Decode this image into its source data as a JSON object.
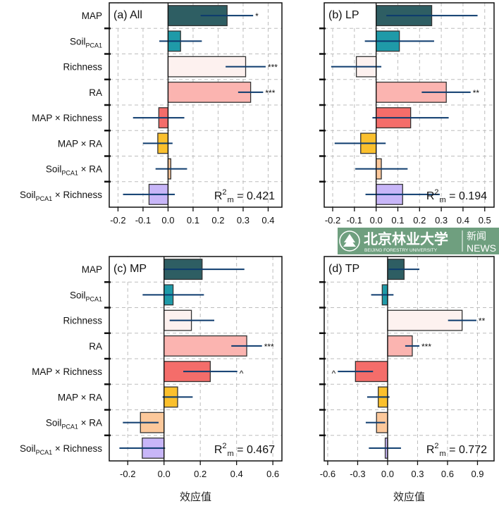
{
  "chart_data": [
    {
      "type": "bar",
      "orientation": "horizontal",
      "title": "(a) All",
      "categories": [
        {
          "main": "MAP",
          "sub": "",
          "suffix": ""
        },
        {
          "main": "Soil",
          "sub": "PCA1",
          "suffix": ""
        },
        {
          "main": "Richness",
          "sub": "",
          "suffix": ""
        },
        {
          "main": "RA",
          "sub": "",
          "suffix": ""
        },
        {
          "main": "MAP × Richness",
          "sub": "",
          "suffix": ""
        },
        {
          "main": "MAP × RA",
          "sub": "",
          "suffix": ""
        },
        {
          "main": "Soil",
          "sub": "PCA1",
          "suffix": " × RA"
        },
        {
          "main": "Soil",
          "sub": "PCA1",
          "suffix": " × Richness"
        }
      ],
      "values": [
        0.236,
        0.05,
        0.31,
        0.33,
        -0.037,
        -0.041,
        0.011,
        -0.076
      ],
      "ci_low": [
        0.13,
        -0.035,
        0.23,
        0.28,
        -0.14,
        -0.1,
        -0.05,
        -0.18
      ],
      "ci_high": [
        0.34,
        0.135,
        0.39,
        0.38,
        0.065,
        0.018,
        0.076,
        0.027
      ],
      "significance": [
        "*",
        "",
        "***",
        "***",
        "",
        "",
        "",
        ""
      ],
      "xlim": [
        -0.235,
        0.455
      ],
      "xticks": [
        "-0.2",
        "-0.1",
        "0.0",
        "0.1",
        "0.2",
        "0.3",
        "0.4"
      ],
      "xtick_values": [
        -0.2,
        -0.1,
        0,
        0.1,
        0.2,
        0.3,
        0.4
      ],
      "r2": {
        "label": "R",
        "sup": "2",
        "sub": "m",
        "value": " = 0.421"
      },
      "xlabel": "",
      "grid": true
    },
    {
      "type": "bar",
      "orientation": "horizontal",
      "title": "(b) LP",
      "values": [
        0.256,
        0.107,
        -0.091,
        0.323,
        0.159,
        -0.071,
        0.024,
        0.122
      ],
      "ci_low": [
        0.047,
        -0.052,
        -0.207,
        0.21,
        -0.017,
        -0.191,
        -0.096,
        -0.049
      ],
      "ci_high": [
        0.467,
        0.267,
        0.024,
        0.435,
        0.334,
        0.044,
        0.145,
        0.293
      ],
      "significance": [
        "",
        "",
        "",
        "**",
        "",
        "",
        "",
        ""
      ],
      "xlim": [
        -0.239,
        0.543
      ],
      "xticks": [
        "-0.2",
        "-0.1",
        "0.0",
        "0.1",
        "0.2",
        "0.3",
        "0.4",
        "0.5"
      ],
      "xtick_values": [
        -0.2,
        -0.1,
        0,
        0.1,
        0.2,
        0.3,
        0.4,
        0.5
      ],
      "r2": {
        "label": "R",
        "sup": "2",
        "sub": "m",
        "value": " = 0.194"
      },
      "xlabel": "",
      "grid": true
    },
    {
      "type": "bar",
      "orientation": "horizontal",
      "title": "(c) MP",
      "values": [
        0.21,
        0.05,
        0.151,
        0.456,
        0.255,
        0.075,
        -0.13,
        -0.12
      ],
      "ci_low": [
        -0.017,
        -0.118,
        0.031,
        0.371,
        0.106,
        -0.008,
        -0.227,
        -0.246
      ],
      "ci_high": [
        0.443,
        0.22,
        0.277,
        0.54,
        0.404,
        0.158,
        -0.03,
        0.006
      ],
      "significance": [
        "",
        "",
        "",
        "***",
        "^",
        "",
        "",
        ""
      ],
      "xlim": [
        -0.302,
        0.65
      ],
      "xticks": [
        "-0.2",
        "0.0",
        "0.2",
        "0.4",
        "0.6"
      ],
      "xtick_values": [
        -0.2,
        0,
        0.2,
        0.4,
        0.6
      ],
      "r2": {
        "label": "R",
        "sup": "2",
        "sub": "m",
        "value": " = 0.467"
      },
      "xlabel": "效应值",
      "grid": true
    },
    {
      "type": "bar",
      "orientation": "horizontal",
      "title": "(d) TP",
      "values": [
        0.165,
        -0.054,
        0.746,
        0.247,
        -0.322,
        -0.094,
        -0.111,
        -0.024
      ],
      "ci_low": [
        0.012,
        -0.165,
        0.605,
        0.176,
        -0.499,
        -0.205,
        -0.219,
        -0.188
      ],
      "ci_high": [
        0.318,
        0.059,
        0.889,
        0.318,
        -0.146,
        0.019,
        -0.024,
        0.134
      ],
      "significance": [
        "",
        "",
        "**",
        "***",
        "^",
        "",
        "",
        ""
      ],
      "xlim": [
        -0.635,
        1.066
      ],
      "xticks": [
        "-0.6",
        "-0.3",
        "0.0",
        "0.3",
        "0.6",
        "0.9"
      ],
      "xtick_values": [
        -0.6,
        -0.3,
        0,
        0.3,
        0.6,
        0.9
      ],
      "r2": {
        "label": "R",
        "sup": "2",
        "sub": "m",
        "value": " = 0.772"
      },
      "xlabel": "效应值",
      "grid": true
    }
  ],
  "colors": {
    "bars": [
      "#2e5e63",
      "#1f9aa8",
      "#fdf1ef",
      "#fbb4b0",
      "#f46d6a",
      "#fbc02d",
      "#fcc89b",
      "#c8b6f8"
    ],
    "error_bar": "#0d3b6e",
    "grid": "#bdbdbd"
  },
  "watermark": {
    "name_cn": "北京林业大学",
    "name_en": "BEIJING FORESTRY UNIVERSITY",
    "news_cn": "新闻",
    "news_en": "NEWS",
    "color": "#6f9f7f"
  }
}
